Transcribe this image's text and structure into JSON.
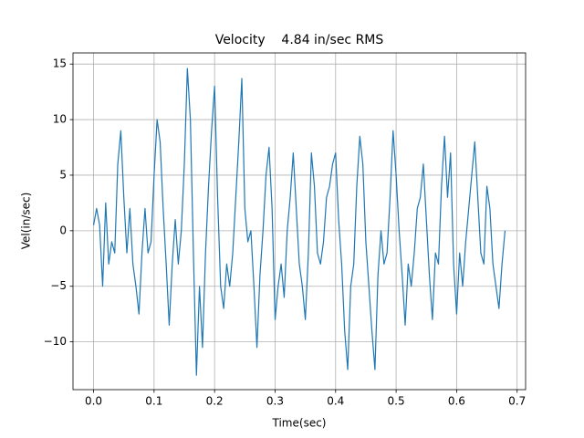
{
  "chart_data": {
    "type": "line",
    "title": "Velocity    4.84 in/sec RMS",
    "xlabel": "Time(sec)",
    "ylabel": "Vel(in/sec)",
    "x": [
      0,
      0.005,
      0.01,
      0.015,
      0.02,
      0.025,
      0.03,
      0.035,
      0.04,
      0.045,
      0.05,
      0.055,
      0.06,
      0.065,
      0.07,
      0.075,
      0.08,
      0.085,
      0.09,
      0.095,
      0.1,
      0.105,
      0.11,
      0.115,
      0.12,
      0.125,
      0.13,
      0.135,
      0.14,
      0.145,
      0.15,
      0.155,
      0.16,
      0.165,
      0.17,
      0.175,
      0.18,
      0.185,
      0.19,
      0.195,
      0.2,
      0.205,
      0.21,
      0.215,
      0.22,
      0.225,
      0.23,
      0.235,
      0.24,
      0.245,
      0.25,
      0.255,
      0.26,
      0.265,
      0.27,
      0.275,
      0.28,
      0.285,
      0.29,
      0.295,
      0.3,
      0.305,
      0.31,
      0.315,
      0.32,
      0.325,
      0.33,
      0.335,
      0.34,
      0.345,
      0.35,
      0.355,
      0.36,
      0.365,
      0.37,
      0.375,
      0.38,
      0.385,
      0.39,
      0.395,
      0.4,
      0.405,
      0.41,
      0.415,
      0.42,
      0.425,
      0.43,
      0.435,
      0.44,
      0.445,
      0.45,
      0.455,
      0.46,
      0.465,
      0.47,
      0.475,
      0.48,
      0.485,
      0.49,
      0.495,
      0.5,
      0.505,
      0.51,
      0.515,
      0.52,
      0.525,
      0.53,
      0.535,
      0.54,
      0.545,
      0.55,
      0.555,
      0.56,
      0.565,
      0.57,
      0.575,
      0.58,
      0.585,
      0.59,
      0.595,
      0.6,
      0.605,
      0.61,
      0.615,
      0.62,
      0.625,
      0.63,
      0.635,
      0.64,
      0.645,
      0.65,
      0.655,
      0.66,
      0.665,
      0.67,
      0.675,
      0.68
    ],
    "series": [
      {
        "color": "#1f77b4",
        "values": [
          0.5,
          2,
          0.5,
          -5,
          2.5,
          -3,
          -1,
          -2,
          6,
          9,
          3,
          -2,
          2,
          -3,
          -5,
          -7.5,
          -2,
          2,
          -2,
          -1,
          5,
          10,
          8,
          2,
          -3,
          -8.5,
          -3,
          1,
          -3,
          0,
          6,
          14.6,
          10,
          -2,
          -13,
          -5,
          -10.5,
          -2,
          4,
          9,
          13,
          3,
          -5,
          -7,
          -3,
          -5,
          -2,
          3,
          8,
          13.7,
          2,
          -1,
          0,
          -5,
          -10.5,
          -4,
          0,
          5,
          7.5,
          2,
          -8,
          -5,
          -3,
          -6,
          0,
          3,
          7,
          2,
          -3,
          -5,
          -8,
          -2,
          7,
          4,
          -2,
          -3,
          -1,
          3,
          4,
          6,
          7,
          1,
          -3,
          -9,
          -12.5,
          -5,
          -3,
          4,
          8.5,
          6,
          -1,
          -5,
          -9,
          -12.5,
          -4,
          0,
          -3,
          -2,
          3,
          9,
          5,
          0,
          -4,
          -8.5,
          -3,
          -5,
          -2,
          2,
          3,
          6,
          1,
          -4,
          -8,
          -2,
          -3,
          4,
          8.5,
          3,
          7,
          -3,
          -7.5,
          -2,
          -5,
          -1,
          2,
          5,
          8,
          3,
          -2,
          -3,
          4,
          2,
          -3,
          -5,
          -7,
          -3,
          0
        ]
      }
    ],
    "xlim": [
      -0.034,
      0.714
    ],
    "ylim": [
      -14.3,
      16.0
    ],
    "xticks": [
      {
        "value": 0,
        "label": "0.0"
      },
      0.1,
      0.2,
      0.3,
      0.4,
      0.5,
      0.6,
      0.7
    ],
    "yticks": [
      {
        "value": -10,
        "label": "−10"
      },
      {
        "value": -5,
        "label": "−5"
      },
      0,
      5,
      10,
      15
    ],
    "grid": true
  }
}
